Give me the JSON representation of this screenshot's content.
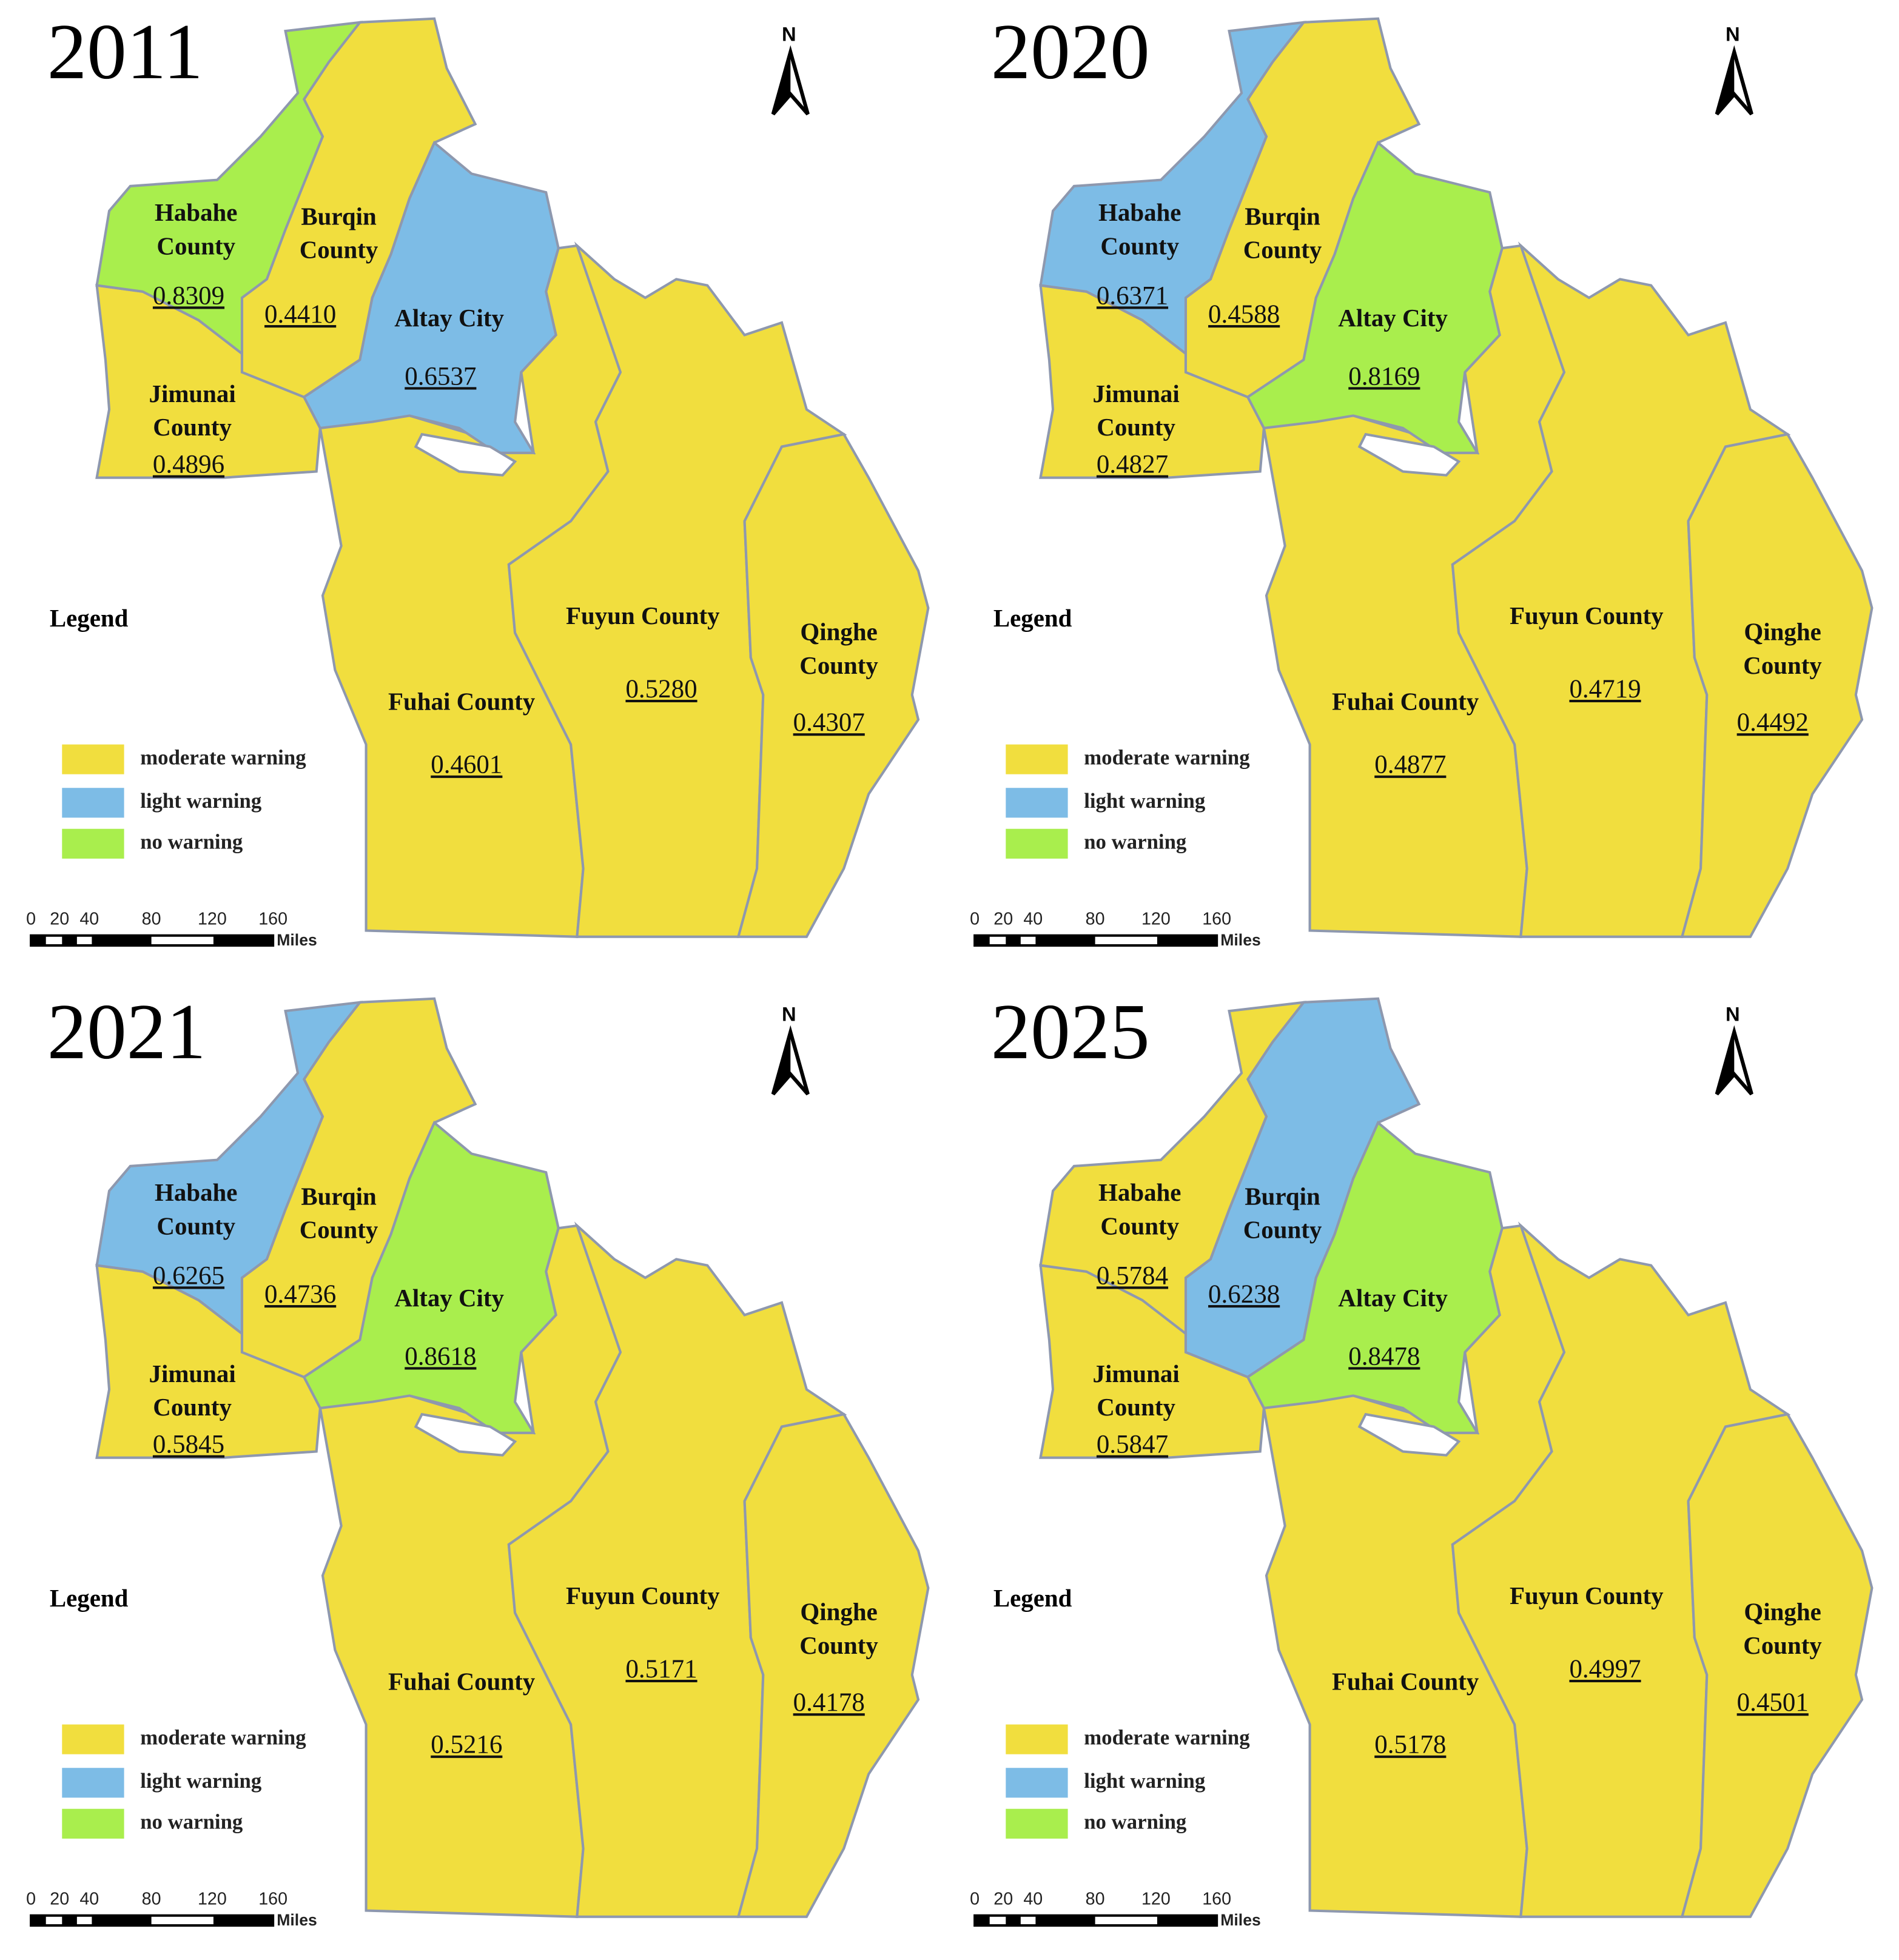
{
  "colors": {
    "moderate warning": "#F1DE3E",
    "light warning": "#7DBCE6",
    "no warning": "#A9EE4D",
    "border": "#8E98AE"
  },
  "legend": {
    "title": "Legend",
    "items": [
      {
        "label": "moderate warning",
        "status": "moderate warning"
      },
      {
        "label": "light warning",
        "status": "light warning"
      },
      {
        "label": "no warning",
        "status": "no warning"
      }
    ]
  },
  "scale": {
    "ticks": [
      "0",
      "20",
      "40",
      "80",
      "120",
      "160"
    ],
    "unit": "Miles"
  },
  "north_label": "N",
  "panels": [
    {
      "year": "2011",
      "regions": [
        {
          "name": "Habahe County",
          "value": "0.8309",
          "status": "no warning"
        },
        {
          "name": "Burqin County",
          "value": "0.4410",
          "status": "moderate warning"
        },
        {
          "name": "Altay City",
          "value": "0.6537",
          "status": "light warning"
        },
        {
          "name": "Jimunai County",
          "value": "0.4896",
          "status": "moderate warning"
        },
        {
          "name": "Fuhai County",
          "value": "0.4601",
          "status": "moderate warning"
        },
        {
          "name": "Fuyun County",
          "value": "0.5280",
          "status": "moderate warning"
        },
        {
          "name": "Qinghe County",
          "value": "0.4307",
          "status": "moderate warning"
        }
      ]
    },
    {
      "year": "2020",
      "regions": [
        {
          "name": "Habahe County",
          "value": "0.6371",
          "status": "light warning"
        },
        {
          "name": "Burqin County",
          "value": "0.4588",
          "status": "moderate warning"
        },
        {
          "name": "Altay City",
          "value": "0.8169",
          "status": "no warning"
        },
        {
          "name": "Jimunai County",
          "value": "0.4827",
          "status": "moderate warning"
        },
        {
          "name": "Fuhai County",
          "value": "0.4877",
          "status": "moderate warning"
        },
        {
          "name": "Fuyun County",
          "value": "0.4719",
          "status": "moderate warning"
        },
        {
          "name": "Qinghe County",
          "value": "0.4492",
          "status": "moderate warning"
        }
      ]
    },
    {
      "year": "2021",
      "regions": [
        {
          "name": "Habahe County",
          "value": "0.6265",
          "status": "light warning"
        },
        {
          "name": "Burqin County",
          "value": "0.4736",
          "status": "moderate warning"
        },
        {
          "name": "Altay City",
          "value": "0.8618",
          "status": "no warning"
        },
        {
          "name": "Jimunai County",
          "value": "0.5845",
          "status": "moderate warning"
        },
        {
          "name": "Fuhai County",
          "value": "0.5216",
          "status": "moderate warning"
        },
        {
          "name": "Fuyun County",
          "value": "0.5171",
          "status": "moderate warning"
        },
        {
          "name": "Qinghe County",
          "value": "0.4178",
          "status": "moderate warning"
        }
      ]
    },
    {
      "year": "2025",
      "regions": [
        {
          "name": "Habahe County",
          "value": "0.5784",
          "status": "moderate warning"
        },
        {
          "name": "Burqin County",
          "value": "0.6238",
          "status": "light warning"
        },
        {
          "name": "Altay City",
          "value": "0.8478",
          "status": "no warning"
        },
        {
          "name": "Jimunai County",
          "value": "0.5847",
          "status": "moderate warning"
        },
        {
          "name": "Fuhai County",
          "value": "0.5178",
          "status": "moderate warning"
        },
        {
          "name": "Fuyun County",
          "value": "0.4997",
          "status": "moderate warning"
        },
        {
          "name": "Qinghe County",
          "value": "0.4501",
          "status": "moderate warning"
        }
      ]
    }
  ]
}
